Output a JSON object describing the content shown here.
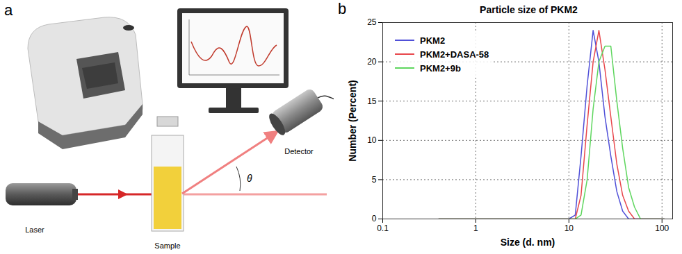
{
  "diagram": {
    "panel": "a",
    "laser": "Laser",
    "sample": "Sample",
    "detector": "Detector",
    "angle": "θ"
  },
  "chart_data": {
    "panel": "b",
    "type": "line",
    "title": "Particle size of PKM2",
    "x_label": "Size (d. nm)",
    "y_label": "Number (Percent)",
    "log": "x",
    "grid": true,
    "legend": "top-left",
    "xlim": [
      0.1,
      130
    ],
    "xticks": [
      0.1,
      1,
      10,
      100
    ],
    "ylim": [
      0,
      25
    ],
    "yticks": [
      0,
      5,
      10,
      15,
      20,
      25
    ],
    "x": [
      0.4,
      1,
      5,
      10,
      11.7,
      13.5,
      15.7,
      18.2,
      21,
      24.4,
      28.2,
      32.7,
      37.8,
      43.8,
      50.7,
      58.8,
      68,
      78.8,
      91.3,
      105.7
    ],
    "series": [
      {
        "name": "PKM2",
        "color": "#5050d8",
        "values": [
          0,
          0,
          0,
          0,
          0.5,
          8,
          17,
          24,
          20,
          13,
          8,
          3.5,
          1,
          0,
          0,
          0,
          0,
          0,
          0,
          0
        ]
      },
      {
        "name": "PKM2+DASA-58",
        "color": "#e8474c",
        "values": [
          0,
          0,
          0,
          0,
          0,
          3,
          12,
          20,
          24,
          19,
          13,
          7,
          3,
          1,
          0,
          0,
          0,
          0,
          0,
          0
        ]
      },
      {
        "name": "PKM2+9b",
        "color": "#5ed65e",
        "values": [
          0,
          0,
          0,
          0,
          0,
          0.5,
          5,
          14,
          20,
          22,
          22,
          15,
          9,
          4,
          1.5,
          0,
          0,
          0,
          0,
          0
        ]
      }
    ]
  }
}
